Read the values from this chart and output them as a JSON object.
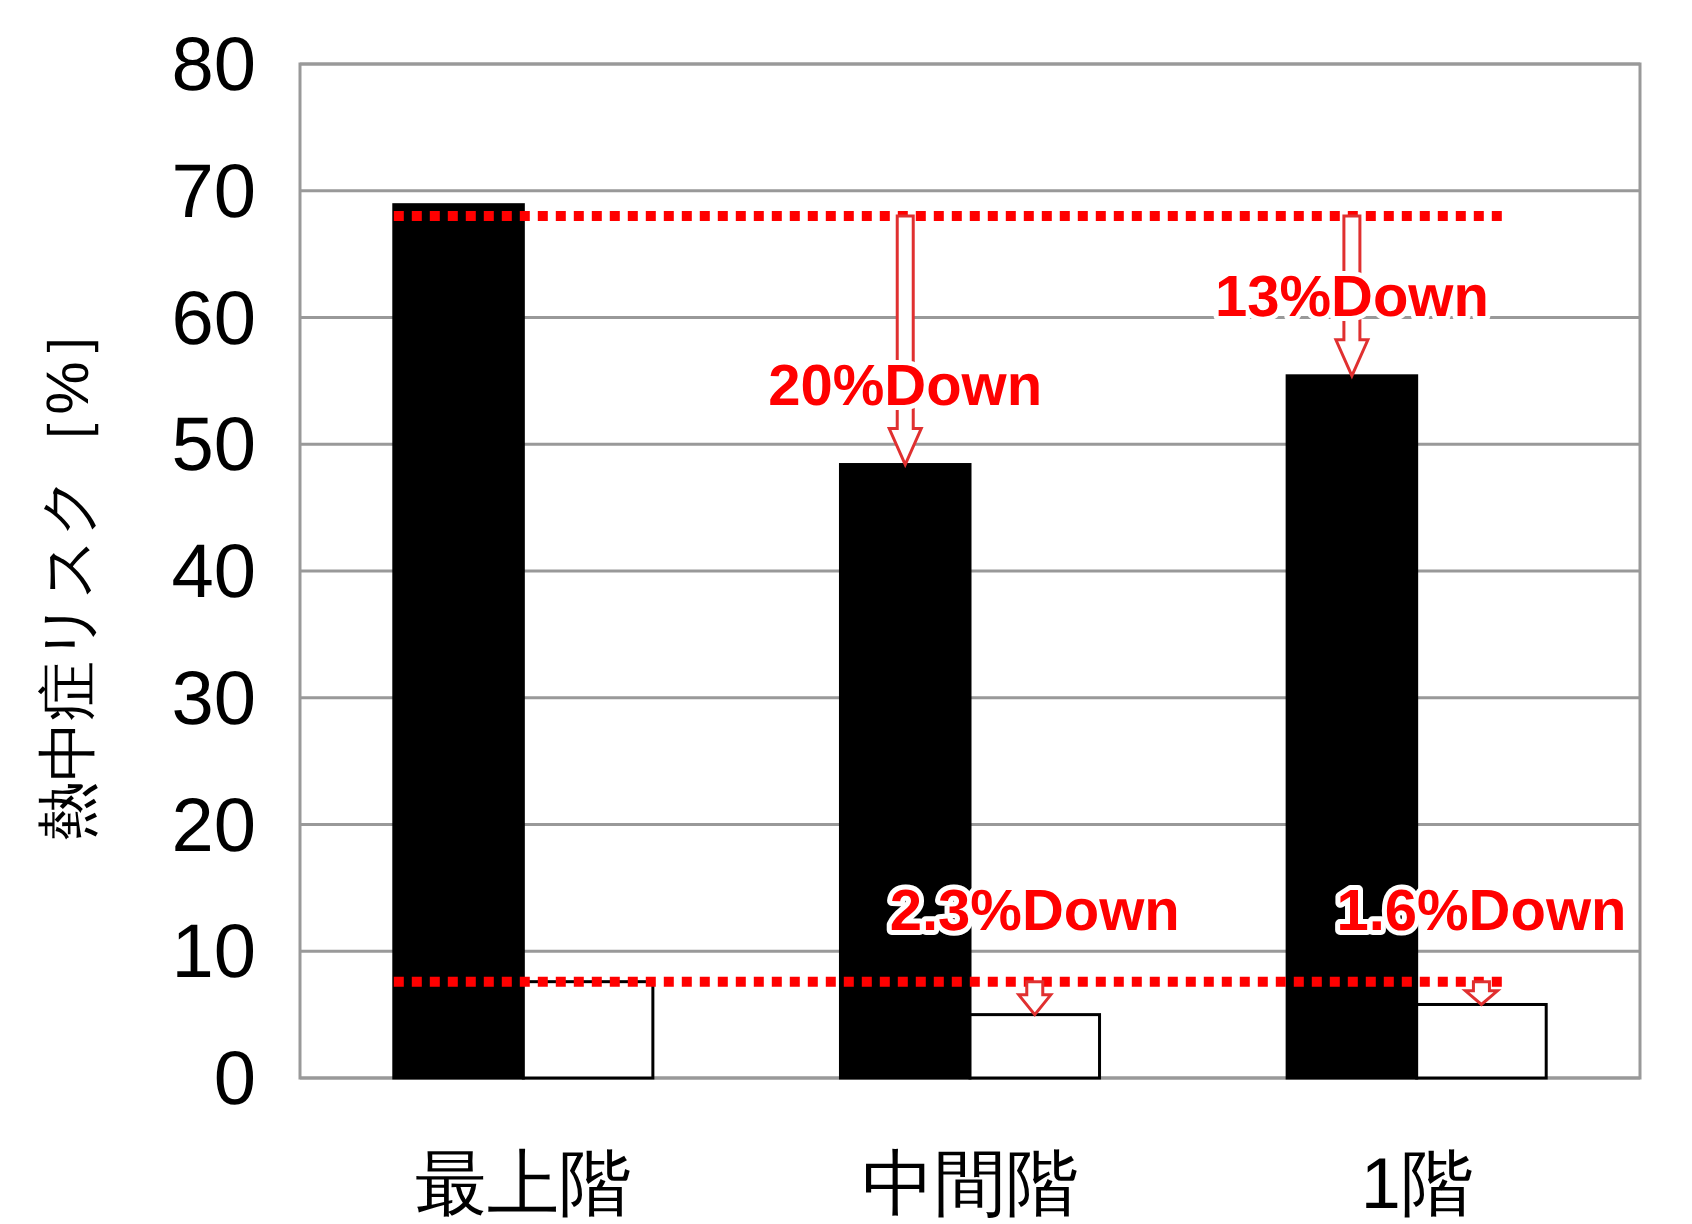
{
  "chart_data": {
    "type": "bar",
    "ylabel": "熱中症リスク［%］",
    "categories": [
      "最上階",
      "中間階",
      "1階"
    ],
    "series": [
      {
        "color": "#000000",
        "values": [
          68.9,
          48.4,
          55.4
        ]
      },
      {
        "color": "#ffffff",
        "values": [
          7.6,
          5.0,
          5.8
        ]
      }
    ],
    "ylim": [
      0,
      80
    ],
    "yticks": [
      0,
      10,
      20,
      30,
      40,
      50,
      60,
      70,
      80
    ],
    "grid": "y",
    "ref_lines": [
      {
        "axis": "y",
        "value": 68,
        "color": "#ff0000",
        "line_style": "dotted"
      },
      {
        "axis": "y",
        "value": 7.6,
        "color": "#ff0000",
        "line_style": "dotted"
      }
    ],
    "annotations": [
      {
        "text": "20%Down",
        "x": "中間階",
        "y": 48.4
      },
      {
        "text": "13%Down",
        "x": "1階",
        "y": 55.4
      },
      {
        "text": "2.3%Down",
        "x": "中間階",
        "y": 5.0
      },
      {
        "text": "1.6%Down",
        "x": "1階",
        "y": 5.8
      }
    ]
  }
}
